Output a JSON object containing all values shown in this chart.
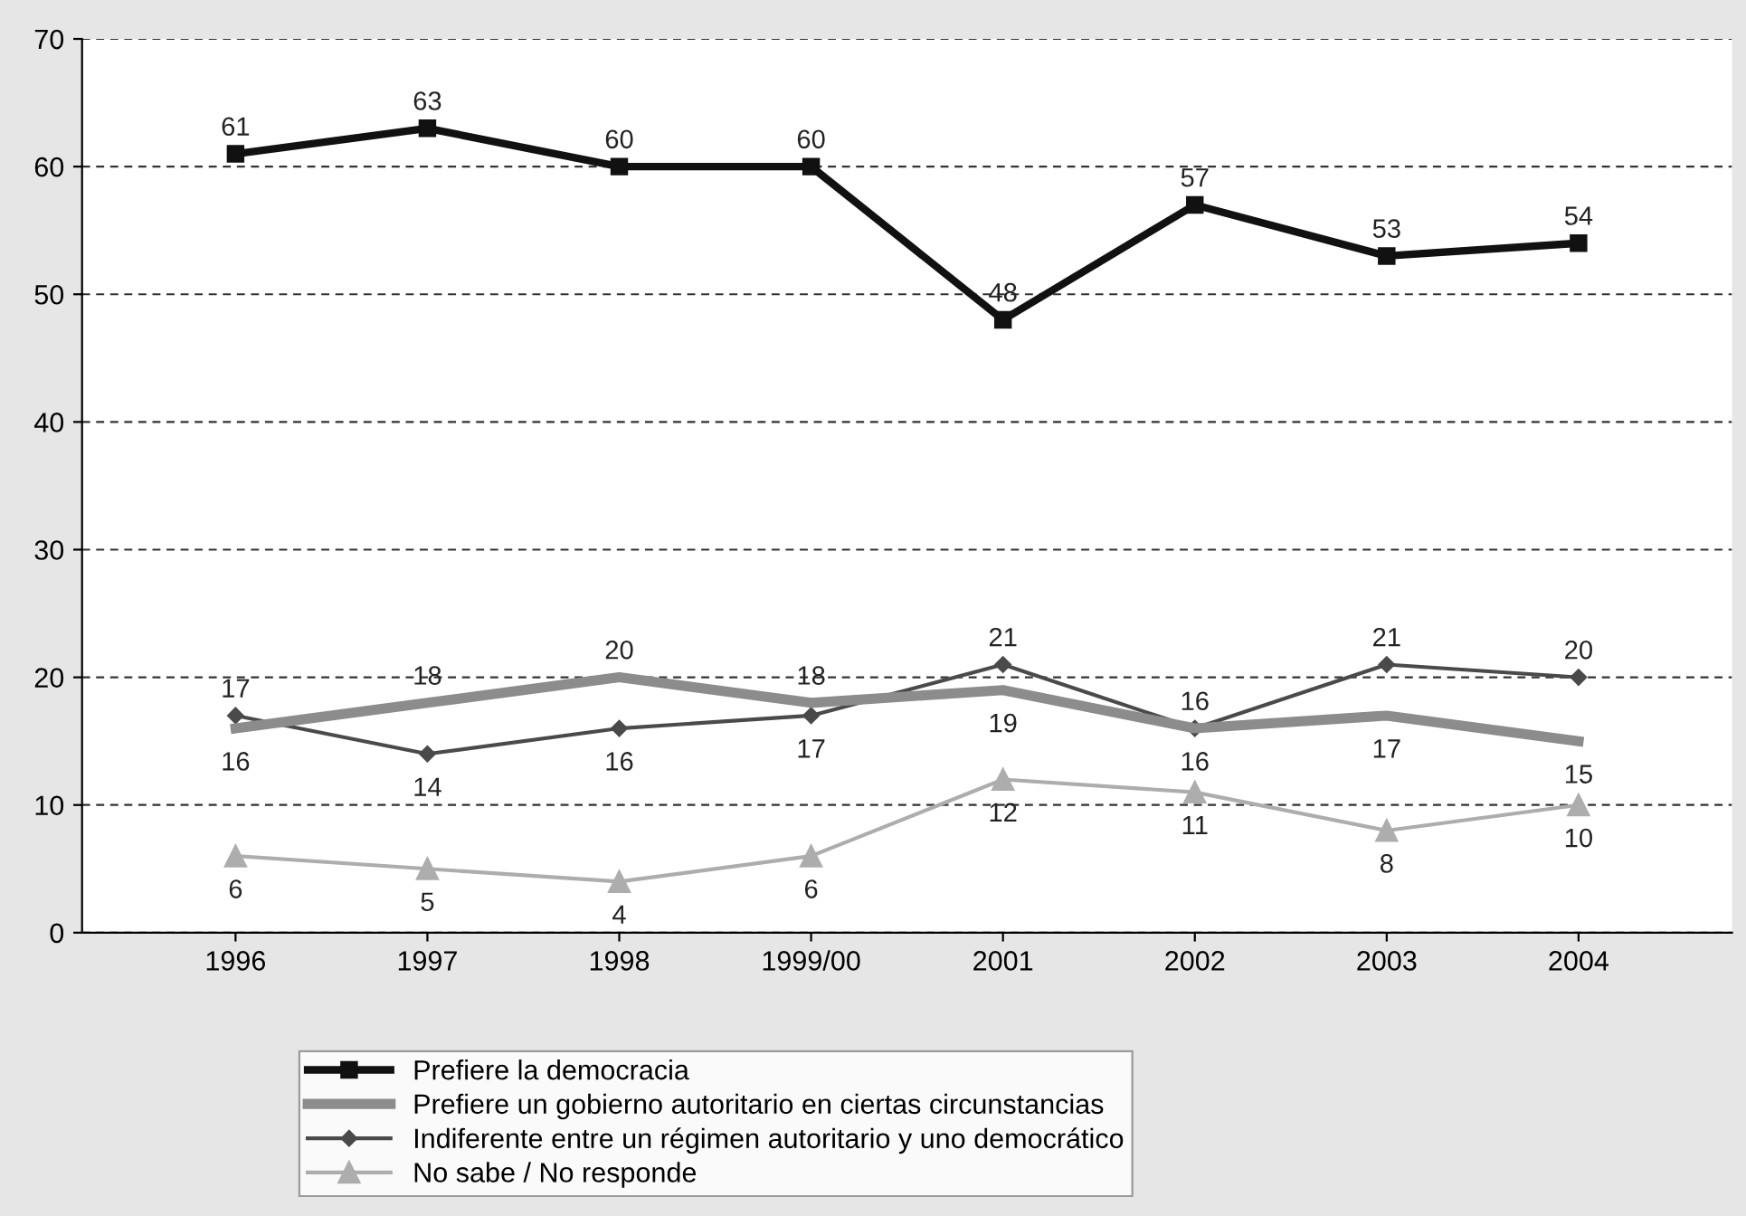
{
  "chart_data": {
    "type": "line",
    "categories": [
      "1996",
      "1997",
      "1998",
      "1999/00",
      "2001",
      "2002",
      "2003",
      "2004"
    ],
    "series": [
      {
        "name": "Prefiere la democracia",
        "color": "#111111",
        "marker": "square",
        "values": [
          61,
          63,
          60,
          60,
          48,
          57,
          53,
          54
        ]
      },
      {
        "name": "Prefiere un gobierno autoritario en ciertas circunstancias",
        "color": "#8c8c8c",
        "marker": "none",
        "values": [
          16,
          18,
          20,
          18,
          19,
          16,
          17,
          15
        ]
      },
      {
        "name": "Indiferente entre un régimen autoritario y uno democrático",
        "color": "#4a4a4a",
        "marker": "diamond",
        "values": [
          17,
          14,
          16,
          17,
          21,
          16,
          21,
          20
        ]
      },
      {
        "name": "No sabe / No responde",
        "color": "#adadad",
        "marker": "triangle",
        "values": [
          6,
          5,
          4,
          6,
          12,
          11,
          8,
          10
        ]
      }
    ],
    "ylim": [
      0,
      70
    ],
    "yticks": [
      0,
      10,
      20,
      30,
      40,
      50,
      60,
      70
    ],
    "grid": "y",
    "line_style": "solid",
    "data_labels": true,
    "legend": "bottom"
  }
}
